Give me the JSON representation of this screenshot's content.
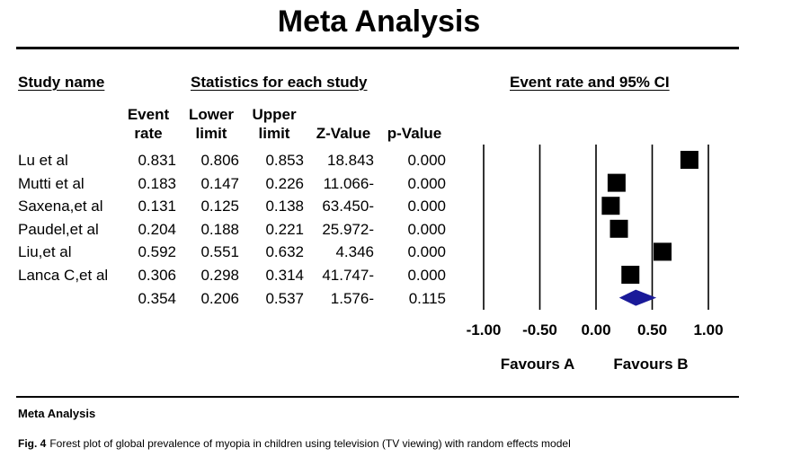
{
  "title": "Meta Analysis",
  "headers": {
    "study_name": "Study name",
    "statistics": "Statistics for each study",
    "plot": "Event rate and 95% CI"
  },
  "columns": {
    "event_rate": [
      "Event",
      "rate"
    ],
    "lower_limit": [
      "Lower",
      "limit"
    ],
    "upper_limit": [
      "Upper",
      "limit"
    ],
    "z_value": "Z-Value",
    "p_value": "p-Value"
  },
  "rows": [
    {
      "study": "Lu et al",
      "event_rate": "0.831",
      "lower": "0.806",
      "upper": "0.853",
      "z": "18.843",
      "p": "0.000"
    },
    {
      "study": "Mutti et al",
      "event_rate": "0.183",
      "lower": "0.147",
      "upper": "0.226",
      "z": "11.066-",
      "p": "0.000"
    },
    {
      "study": "Saxena,et al",
      "event_rate": "0.131",
      "lower": "0.125",
      "upper": "0.138",
      "z": "63.450-",
      "p": "0.000"
    },
    {
      "study": "Paudel,et al",
      "event_rate": "0.204",
      "lower": "0.188",
      "upper": "0.221",
      "z": "25.972-",
      "p": "0.000"
    },
    {
      "study": "Liu,et al",
      "event_rate": "0.592",
      "lower": "0.551",
      "upper": "0.632",
      "z": "4.346",
      "p": "0.000"
    },
    {
      "study": "Lanca C,et al",
      "event_rate": "0.306",
      "lower": "0.298",
      "upper": "0.314",
      "z": "41.747-",
      "p": "0.000"
    }
  ],
  "pooled": {
    "study": "",
    "event_rate": "0.354",
    "lower": "0.206",
    "upper": "0.537",
    "z": "1.576-",
    "p": "0.115"
  },
  "favours": {
    "left": "Favours A",
    "right": "Favours B"
  },
  "footer_label": "Meta Analysis",
  "caption": {
    "label": "Fig. 4",
    "text": "Forest plot of global prevalence of myopia in children using television (TV viewing) with random effects model"
  },
  "colors": {
    "marker": "#000000",
    "pooled_diamond": "#1a1a99",
    "axis": "#000000"
  },
  "chart_data": {
    "type": "scatter",
    "xlim": [
      -1.0,
      1.0
    ],
    "ticks": [
      -1.0,
      -0.5,
      0.0,
      0.5,
      1.0
    ],
    "tick_labels": [
      "-1.00",
      "-0.50",
      "0.00",
      "0.50",
      "1.00"
    ],
    "reference_lines": [
      -1.0,
      -0.5,
      0.0,
      0.5,
      1.0
    ],
    "studies": [
      {
        "name": "Lu et al",
        "estimate": 0.831,
        "lower": 0.806,
        "upper": 0.853
      },
      {
        "name": "Mutti et al",
        "estimate": 0.183,
        "lower": 0.147,
        "upper": 0.226
      },
      {
        "name": "Saxena,et al",
        "estimate": 0.131,
        "lower": 0.125,
        "upper": 0.138
      },
      {
        "name": "Paudel,et al",
        "estimate": 0.204,
        "lower": 0.188,
        "upper": 0.221
      },
      {
        "name": "Liu,et al",
        "estimate": 0.592,
        "lower": 0.551,
        "upper": 0.632
      },
      {
        "name": "Lanca C,et al",
        "estimate": 0.306,
        "lower": 0.298,
        "upper": 0.314
      }
    ],
    "pooled": {
      "estimate": 0.354,
      "lower": 0.206,
      "upper": 0.537
    }
  }
}
